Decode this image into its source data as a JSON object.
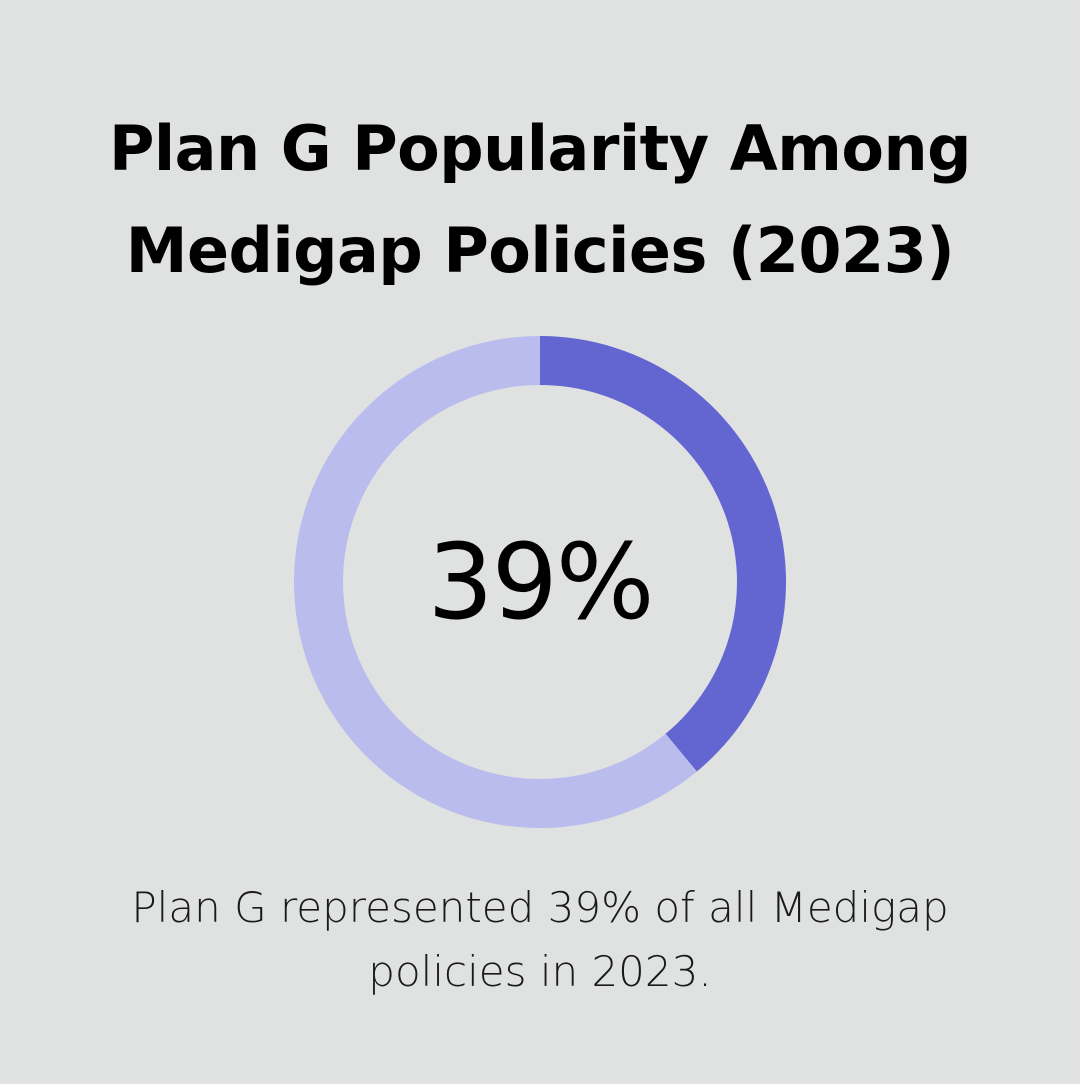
{
  "title_lines": [
    "Plan G Popularity Among",
    "Medigap Policies (2023)"
  ],
  "caption_lines": [
    "Plan G represented 39% of all Medigap",
    "policies in 2023."
  ],
  "chart_data": {
    "type": "pie",
    "title": "Plan G Popularity Among Medigap Policies (2023)",
    "center_label": "39%",
    "slices": [
      {
        "value": 39,
        "color": "#6366d1"
      },
      {
        "value": 61,
        "color": "#babced"
      }
    ],
    "value_unit": "%",
    "legend": "none"
  }
}
